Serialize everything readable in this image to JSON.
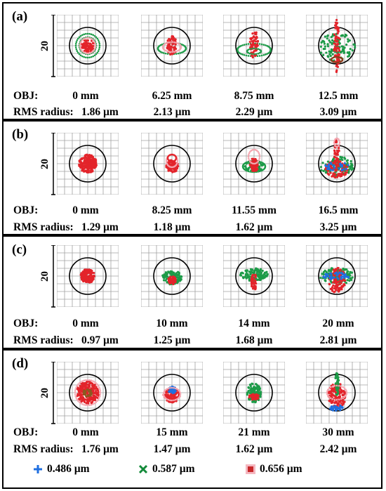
{
  "panels": [
    {
      "label": "(a)",
      "axis": "20",
      "obj_label": "OBJ:",
      "rms_label": "RMS radius:",
      "obj": [
        "0 mm",
        "6.25 mm",
        "8.75 mm",
        "12.5 mm"
      ],
      "rms": [
        "1.86 µm",
        "2.13 µm",
        "2.29 µm",
        "3.09 µm"
      ]
    },
    {
      "label": "(b)",
      "axis": "20",
      "obj_label": "OBJ:",
      "rms_label": "RMS radius:",
      "obj": [
        "0 mm",
        "8.25 mm",
        "11.55 mm",
        "16.5 mm"
      ],
      "rms": [
        "1.29 µm",
        "1.18 µm",
        "1.62 µm",
        "3.25 µm"
      ]
    },
    {
      "label": "(c)",
      "axis": "20",
      "obj_label": "OBJ:",
      "rms_label": "RMS radius:",
      "obj": [
        "0 mm",
        "10 mm",
        "14 mm",
        "20 mm"
      ],
      "rms": [
        "0.97 µm",
        "1.25 µm",
        "1.68 µm",
        "2.81 µm"
      ]
    },
    {
      "label": "(d)",
      "axis": "20",
      "obj_label": "OBJ:",
      "rms_label": "RMS radius:",
      "obj": [
        "0 mm",
        "15 mm",
        "21 mm",
        "30 mm"
      ],
      "rms": [
        "1.76 µm",
        "1.47 µm",
        "1.62 µm",
        "2.42 µm"
      ]
    }
  ],
  "legend": [
    {
      "label": "0.486 µm",
      "marker": "plus",
      "color": "#1f6fe0"
    },
    {
      "label": "0.587 µm",
      "marker": "cross",
      "color": "#138a3a"
    },
    {
      "label": "0.656 µm",
      "marker": "square",
      "color": "#c8282a"
    }
  ],
  "colors": {
    "blue": "#1f6fe0",
    "green": "#1d9b48",
    "red": "#e3242b",
    "pink": "#f4a6b0",
    "grid": "#a0a0a0"
  }
}
